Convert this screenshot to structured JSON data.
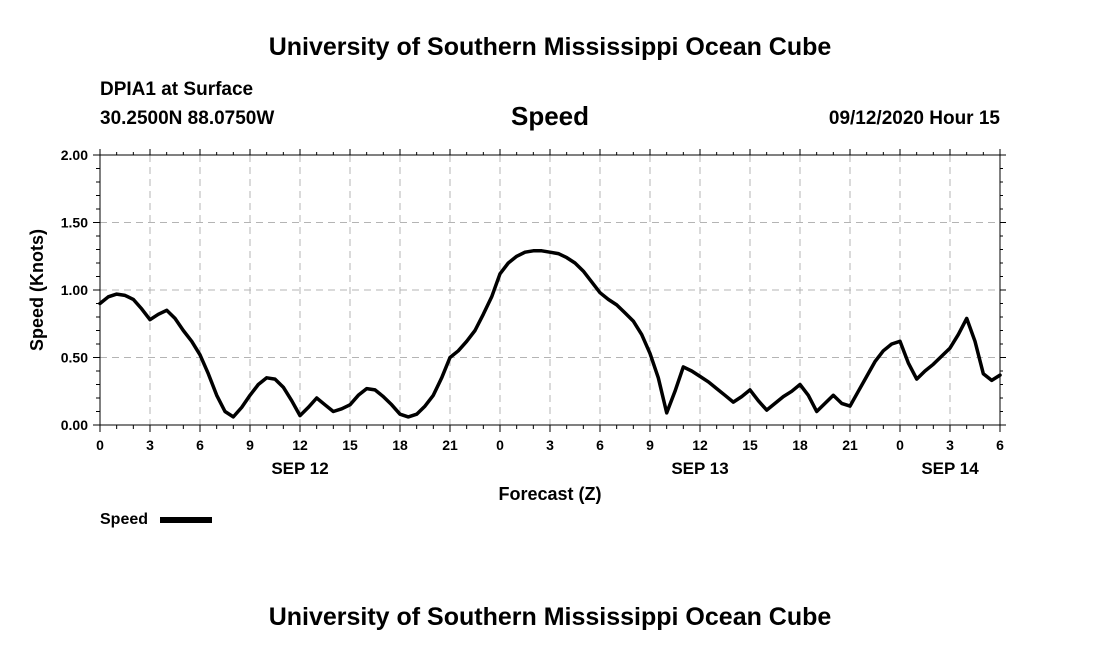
{
  "header": {
    "title": "University of Southern Mississippi Ocean Cube",
    "station": "DPIA1 at Surface",
    "location": "30.2500N 88.0750W",
    "variable": "Speed",
    "datetime": "09/12/2020 Hour 15"
  },
  "footer": {
    "title": "University of Southern Mississippi Ocean Cube"
  },
  "legend": {
    "label": "Speed"
  },
  "chart_data": {
    "type": "line",
    "title": "Speed",
    "xlabel": "Forecast (Z)",
    "ylabel": "Speed (Knots)",
    "xlim": [
      0,
      54
    ],
    "ylim": [
      0,
      2.0
    ],
    "grid": true,
    "legend_position": "bottom-left",
    "y_ticks": [
      0.0,
      0.5,
      1.0,
      1.5,
      2.0
    ],
    "y_tick_labels": [
      "0.00",
      "0.50",
      "1.00",
      "1.50",
      "2.00"
    ],
    "x_ticks": [
      0,
      3,
      6,
      9,
      12,
      15,
      18,
      21,
      24,
      27,
      30,
      33,
      36,
      39,
      42,
      45,
      48,
      51,
      54
    ],
    "x_tick_labels": [
      "0",
      "3",
      "6",
      "9",
      "12",
      "15",
      "18",
      "21",
      "0",
      "3",
      "6",
      "9",
      "12",
      "15",
      "18",
      "21",
      "0",
      "3",
      "6"
    ],
    "date_labels": [
      {
        "hour": 12,
        "label": "SEP 12"
      },
      {
        "hour": 36,
        "label": "SEP 13"
      },
      {
        "hour": 51,
        "label": "SEP 14"
      }
    ],
    "series": [
      {
        "name": "Speed",
        "color": "#000000",
        "x": [
          0,
          0.5,
          1,
          1.5,
          2,
          2.5,
          3,
          3.5,
          4,
          4.5,
          5,
          5.5,
          6,
          6.5,
          7,
          7.5,
          8,
          8.5,
          9,
          9.5,
          10,
          10.5,
          11,
          11.5,
          12,
          12.5,
          13,
          13.5,
          14,
          14.5,
          15,
          15.5,
          16,
          16.5,
          17,
          17.5,
          18,
          18.5,
          19,
          19.5,
          20,
          20.5,
          21,
          21.5,
          22,
          22.5,
          23,
          23.5,
          24,
          24.5,
          25,
          25.5,
          26,
          26.5,
          27,
          27.5,
          28,
          28.5,
          29,
          29.5,
          30,
          30.5,
          31,
          31.5,
          32,
          32.5,
          33,
          33.5,
          34,
          34.5,
          35,
          35.5,
          36,
          36.5,
          37,
          37.5,
          38,
          38.5,
          39,
          39.5,
          40,
          40.5,
          41,
          41.5,
          42,
          42.5,
          43,
          43.5,
          44,
          44.5,
          45,
          45.5,
          46,
          46.5,
          47,
          47.5,
          48,
          48.5,
          49,
          49.5,
          50,
          50.5,
          51,
          51.5,
          52,
          52.5,
          53,
          53.5,
          54
        ],
        "values": [
          0.9,
          0.95,
          0.97,
          0.96,
          0.93,
          0.86,
          0.78,
          0.82,
          0.85,
          0.79,
          0.7,
          0.62,
          0.52,
          0.38,
          0.22,
          0.1,
          0.06,
          0.13,
          0.22,
          0.3,
          0.35,
          0.34,
          0.28,
          0.18,
          0.07,
          0.13,
          0.2,
          0.15,
          0.1,
          0.12,
          0.15,
          0.22,
          0.27,
          0.26,
          0.21,
          0.15,
          0.08,
          0.06,
          0.08,
          0.14,
          0.22,
          0.35,
          0.5,
          0.55,
          0.62,
          0.7,
          0.82,
          0.95,
          1.12,
          1.2,
          1.25,
          1.28,
          1.29,
          1.29,
          1.28,
          1.27,
          1.24,
          1.2,
          1.14,
          1.06,
          0.98,
          0.93,
          0.89,
          0.83,
          0.77,
          0.67,
          0.53,
          0.35,
          0.09,
          0.25,
          0.43,
          0.4,
          0.36,
          0.32,
          0.27,
          0.22,
          0.17,
          0.21,
          0.26,
          0.18,
          0.11,
          0.16,
          0.21,
          0.25,
          0.3,
          0.22,
          0.1,
          0.16,
          0.22,
          0.16,
          0.14,
          0.25,
          0.36,
          0.47,
          0.55,
          0.6,
          0.62,
          0.46,
          0.34,
          0.4,
          0.45,
          0.51,
          0.57,
          0.67,
          0.79,
          0.62,
          0.38,
          0.33,
          0.37
        ]
      }
    ]
  }
}
